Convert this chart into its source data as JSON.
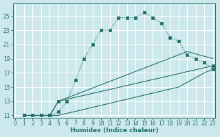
{
  "xlabel": "Humidex (Indice chaleur)",
  "bg_color": "#cce8ec",
  "grid_color": "#b8d8dc",
  "line_color": "#1e6e64",
  "xlim": [
    0,
    23
  ],
  "ylim": [
    11,
    26
  ],
  "yticks": [
    11,
    13,
    15,
    17,
    19,
    21,
    23,
    25
  ],
  "xticks": [
    0,
    1,
    2,
    3,
    4,
    5,
    6,
    7,
    8,
    9,
    10,
    11,
    12,
    13,
    14,
    15,
    16,
    17,
    18,
    19,
    20,
    21,
    22,
    23
  ],
  "line1_x": [
    1,
    2,
    3,
    4,
    5,
    6,
    7,
    8,
    9,
    10,
    11,
    12,
    13,
    14,
    15,
    16,
    17,
    18,
    19,
    20,
    21,
    22,
    23
  ],
  "line1_y": [
    11,
    11,
    11,
    11,
    11.5,
    13,
    16,
    19,
    21,
    23,
    23,
    24.8,
    24.8,
    24.8,
    25.5,
    24.8,
    24,
    22,
    21.5,
    19.5,
    19,
    18.5,
    17.5
  ],
  "line2_x": [
    1,
    3,
    4,
    5,
    23
  ],
  "line2_y": [
    11,
    11,
    11,
    13,
    18
  ],
  "line3_x": [
    1,
    3,
    4,
    5,
    20,
    23
  ],
  "line3_y": [
    11,
    11,
    11,
    13,
    20,
    19
  ],
  "line4_x": [
    1,
    3,
    4,
    5,
    19,
    22,
    23
  ],
  "line4_y": [
    11,
    11,
    11,
    11,
    15,
    17,
    17.5
  ]
}
